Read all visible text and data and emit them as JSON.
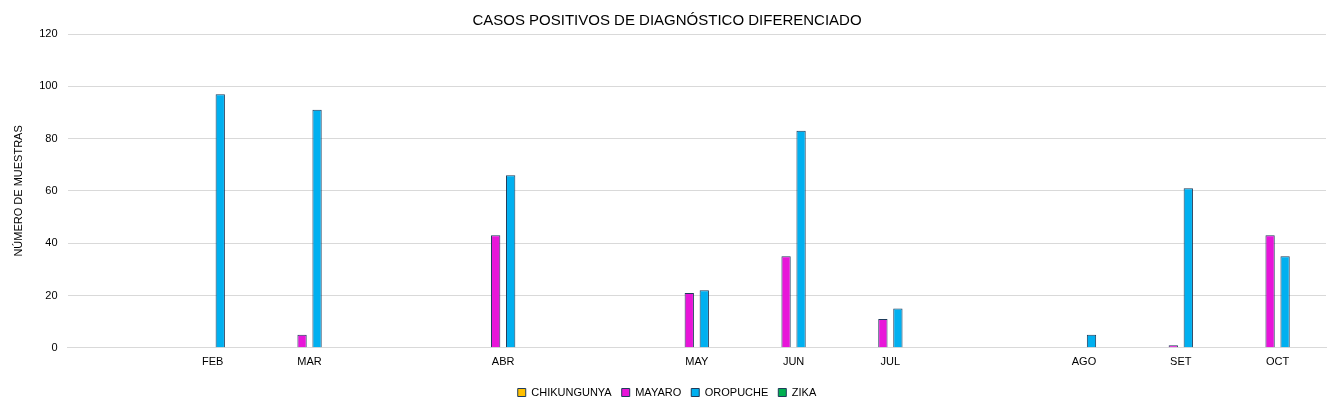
{
  "chart_data": {
    "type": "bar",
    "title": "CASOS POSITIVOS DE DIAGNÓSTICO DIFERENCIADO",
    "ylabel": "NÚMERO DE MUESTRAS",
    "categories": [
      null,
      "FEB",
      "MAR",
      null,
      "ABR",
      null,
      "MAY",
      "JUN",
      "JUL",
      null,
      "AGO",
      "SET",
      "OCT"
    ],
    "series": [
      {
        "name": "CHIKUNGUNYA",
        "color": "#ffc000",
        "values": [
          null,
          null,
          null,
          null,
          null,
          null,
          null,
          null,
          null,
          null,
          null,
          null,
          null
        ]
      },
      {
        "name": "MAYARO",
        "color": "#e815d9",
        "values": [
          null,
          null,
          5,
          null,
          43,
          null,
          21,
          35,
          11,
          null,
          null,
          1,
          43
        ]
      },
      {
        "name": "OROPUCHE",
        "color": "#00b0f0",
        "values": [
          null,
          97,
          91,
          null,
          66,
          null,
          22,
          83,
          15,
          null,
          5,
          61,
          35
        ]
      },
      {
        "name": "ZIKA",
        "color": "#00b050",
        "values": [
          null,
          null,
          null,
          null,
          null,
          null,
          null,
          null,
          null,
          null,
          null,
          null,
          null
        ]
      }
    ],
    "ylim": [
      0,
      120
    ],
    "yticks": [
      0,
      20,
      40,
      60,
      80,
      100,
      120
    ],
    "grid": "y",
    "legend": "bottom"
  }
}
